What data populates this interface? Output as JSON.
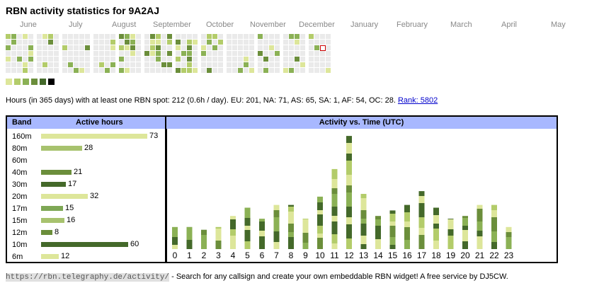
{
  "title": "RBN activity statistics for 9A2AJ",
  "months": [
    "June",
    "July",
    "August",
    "September",
    "October",
    "November",
    "December",
    "January",
    "February",
    "March",
    "April",
    "May"
  ],
  "legend_colors": [
    "#dde69a",
    "#b3cc6a",
    "#8bb155",
    "#6b8e3b",
    "#44692a",
    "#000000"
  ],
  "summary": {
    "text": "Hours (in 365 days) with at least one RBN spot: 212 (0.6h / day). EU: 201, NA: 71, AS: 65, SA: 1, AF: 54, OC: 28.",
    "rank_link": "Rank: 5802"
  },
  "band_table": {
    "header_band": "Band",
    "header_hours": "Active hours",
    "rows": [
      {
        "band": "160m",
        "hours": "73",
        "value": 73,
        "color": "#dde69a"
      },
      {
        "band": "80m",
        "hours": "28",
        "value": 28,
        "color": "#a7c26e"
      },
      {
        "band": "60m",
        "hours": "",
        "value": 0,
        "color": "#dde69a"
      },
      {
        "band": "40m",
        "hours": "21",
        "value": 21,
        "color": "#6b8e3b"
      },
      {
        "band": "30m",
        "hours": "17",
        "value": 17,
        "color": "#44692a"
      },
      {
        "band": "20m",
        "hours": "32",
        "value": 32,
        "color": "#dde69a"
      },
      {
        "band": "17m",
        "hours": "15",
        "value": 15,
        "color": "#7ea755"
      },
      {
        "band": "15m",
        "hours": "16",
        "value": 16,
        "color": "#a7c26e"
      },
      {
        "band": "12m",
        "hours": "8",
        "value": 8,
        "color": "#6b8e3b"
      },
      {
        "band": "10m",
        "hours": "60",
        "value": 60,
        "color": "#44692a"
      },
      {
        "band": "6m",
        "hours": "12",
        "value": 12,
        "color": "#dde69a"
      }
    ]
  },
  "chart_data": {
    "type": "bar",
    "title": "Activity vs. Time (UTC)",
    "categories": [
      "0",
      "1",
      "2",
      "3",
      "4",
      "5",
      "6",
      "7",
      "8",
      "9",
      "10",
      "11",
      "12",
      "13",
      "14",
      "15",
      "16",
      "17",
      "18",
      "19",
      "20",
      "21",
      "22",
      "23"
    ],
    "values": [
      8,
      8,
      7,
      8,
      12,
      15,
      11,
      16,
      16,
      11,
      19,
      29,
      41,
      20,
      12,
      14,
      16,
      21,
      15,
      11,
      12,
      16,
      16,
      8
    ]
  },
  "footer": {
    "url": "https://rbn.telegraphy.de/activity/",
    "text": " - Search for any callsign and create your own embeddable RBN widget! A free service by DJ5CW."
  }
}
